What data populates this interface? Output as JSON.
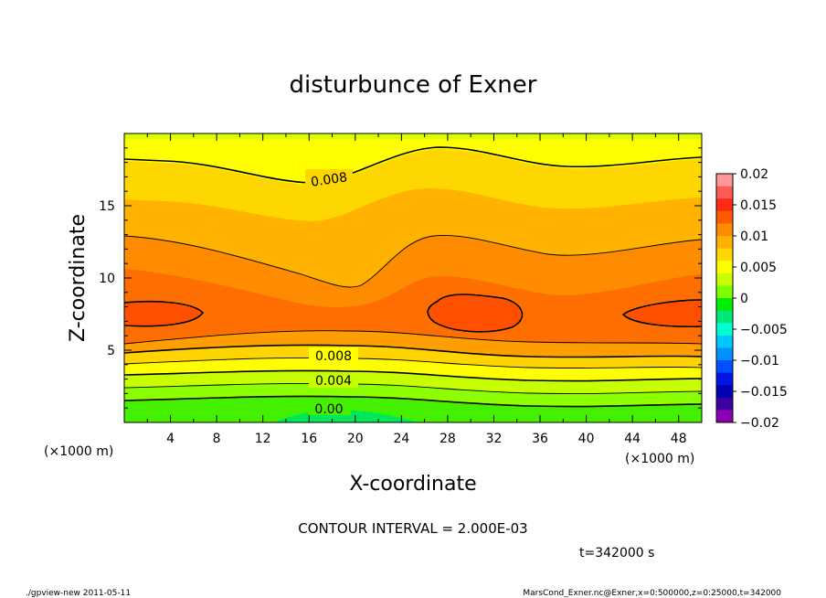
{
  "chart_data": {
    "type": "contour",
    "title": "disturbunce of Exner",
    "xlabel": "X-coordinate",
    "ylabel": "Z-coordinate",
    "x_unit_left": "(×1000 m)",
    "x_unit_right": "(×1000 m)",
    "x_range": [
      0,
      50
    ],
    "y_range": [
      0,
      20
    ],
    "x_ticks": [
      4,
      8,
      12,
      16,
      20,
      24,
      28,
      32,
      36,
      40,
      44,
      48
    ],
    "y_ticks": [
      5,
      10,
      15
    ],
    "contour_interval_text": "CONTOUR INTERVAL = 2.000E-03",
    "time_text": "t=342000 s",
    "contour_labels": [
      "0.008",
      "0.008",
      "0.004",
      "0.00"
    ],
    "colorbar": {
      "ticks": [
        "0.02",
        "0.015",
        "0.01",
        "0.005",
        "0",
        "−0.005",
        "−0.01",
        "−0.015",
        "−0.02"
      ],
      "colors": [
        "#ff9999",
        "#ff5a5a",
        "#ff2a14",
        "#ff5a00",
        "#ff8c00",
        "#ffb300",
        "#ffd700",
        "#ffff00",
        "#c8ff00",
        "#7dff00",
        "#00ee00",
        "#00e87a",
        "#00ffd0",
        "#00c8ff",
        "#0090ff",
        "#0050ff",
        "#0014e8",
        "#0000b4",
        "#3c00a0",
        "#8c00b4"
      ]
    }
  },
  "footer": {
    "left": "./gpview-new   2011-05-11",
    "right": "MarsCond_Exner.nc@Exner,x=0:500000,z=0:25000,t=342000"
  }
}
